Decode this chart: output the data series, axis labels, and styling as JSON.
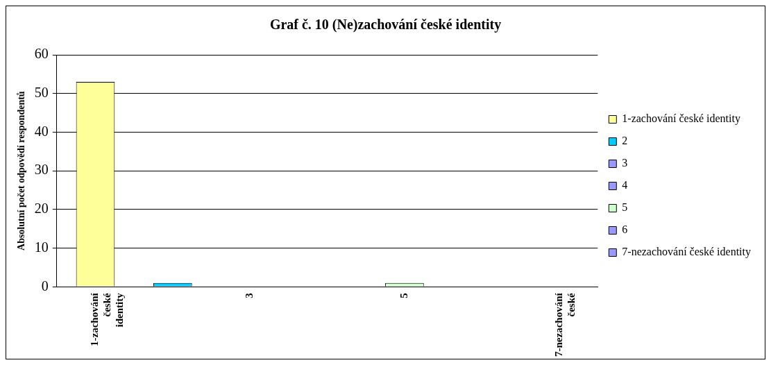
{
  "chart_data": {
    "type": "bar",
    "title": "Graf č. 10 (Ne)zachování české identity",
    "ylabel": "Absolutní počet odpovědí respondentů",
    "categories": [
      "1-zachování české identity",
      null,
      "3",
      null,
      "5",
      null,
      "7-nezachování české"
    ],
    "series": [
      {
        "name": "1-zachování české identity",
        "color": "#ffff99",
        "values": [
          53,
          null,
          null,
          null,
          null,
          null,
          null
        ]
      },
      {
        "name": "2",
        "color": "#00ccff",
        "values": [
          null,
          1,
          null,
          null,
          null,
          null,
          null
        ]
      },
      {
        "name": "3",
        "color": "#9999ff",
        "values": [
          null,
          null,
          0,
          null,
          null,
          null,
          null
        ]
      },
      {
        "name": "4",
        "color": "#9999ff",
        "values": [
          null,
          null,
          null,
          0,
          null,
          null,
          null
        ]
      },
      {
        "name": "5",
        "color": "#ccffcc",
        "values": [
          null,
          null,
          null,
          null,
          1,
          null,
          null
        ]
      },
      {
        "name": "6",
        "color": "#9999ff",
        "values": [
          null,
          null,
          null,
          null,
          null,
          0,
          null
        ]
      },
      {
        "name": "7-nezachování české identity",
        "color": "#9999ff",
        "values": [
          null,
          null,
          null,
          null,
          null,
          null,
          0
        ]
      }
    ],
    "ylim": [
      0,
      60
    ],
    "yticks": [
      0,
      10,
      20,
      30,
      40,
      50,
      60
    ],
    "grid": "y",
    "legend": "right"
  }
}
